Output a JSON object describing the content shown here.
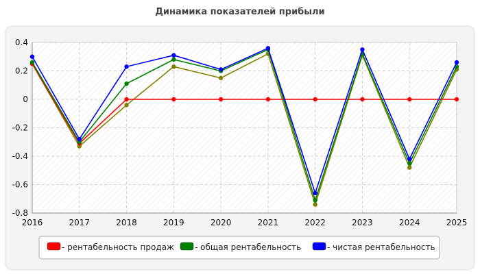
{
  "chart_data": {
    "type": "line",
    "title": "Динамика показателей прибыли",
    "xlabel": "",
    "ylabel": "",
    "x": [
      "2016",
      "2017",
      "2018",
      "2019",
      "2020",
      "2021",
      "2022",
      "2023",
      "2024",
      "2025"
    ],
    "ylim": [
      -0.8,
      0.4
    ],
    "yticks": [
      0.4,
      0.2,
      0,
      -0.2,
      -0.4,
      -0.6,
      -0.8
    ],
    "ytick_labels": [
      "0.4",
      "0.2",
      "0",
      "-0.2",
      "-0.4",
      "-0.6",
      "-0.8"
    ],
    "grid": true,
    "legend_position": "bottom",
    "series": [
      {
        "name": "- рентабельность продаж",
        "color": "#ff0000",
        "values": [
          0.25,
          -0.31,
          0,
          0,
          0,
          0,
          0,
          0,
          0,
          0
        ]
      },
      {
        "name": "- общая рентабельность",
        "color": "#008000",
        "values": [
          0.26,
          -0.3,
          0.11,
          0.28,
          0.2,
          0.35,
          -0.71,
          0.32,
          -0.45,
          0.23
        ]
      },
      {
        "name": "- чистая рентабельность",
        "color": "#0000ff",
        "values": [
          0.3,
          -0.28,
          0.23,
          0.31,
          0.21,
          0.36,
          -0.66,
          0.35,
          -0.42,
          0.26
        ]
      }
    ],
    "extra_line": {
      "color": "#808000",
      "values": [
        0.25,
        -0.33,
        -0.04,
        0.23,
        0.15,
        0.32,
        -0.74,
        0.31,
        -0.48,
        0.21
      ]
    }
  }
}
